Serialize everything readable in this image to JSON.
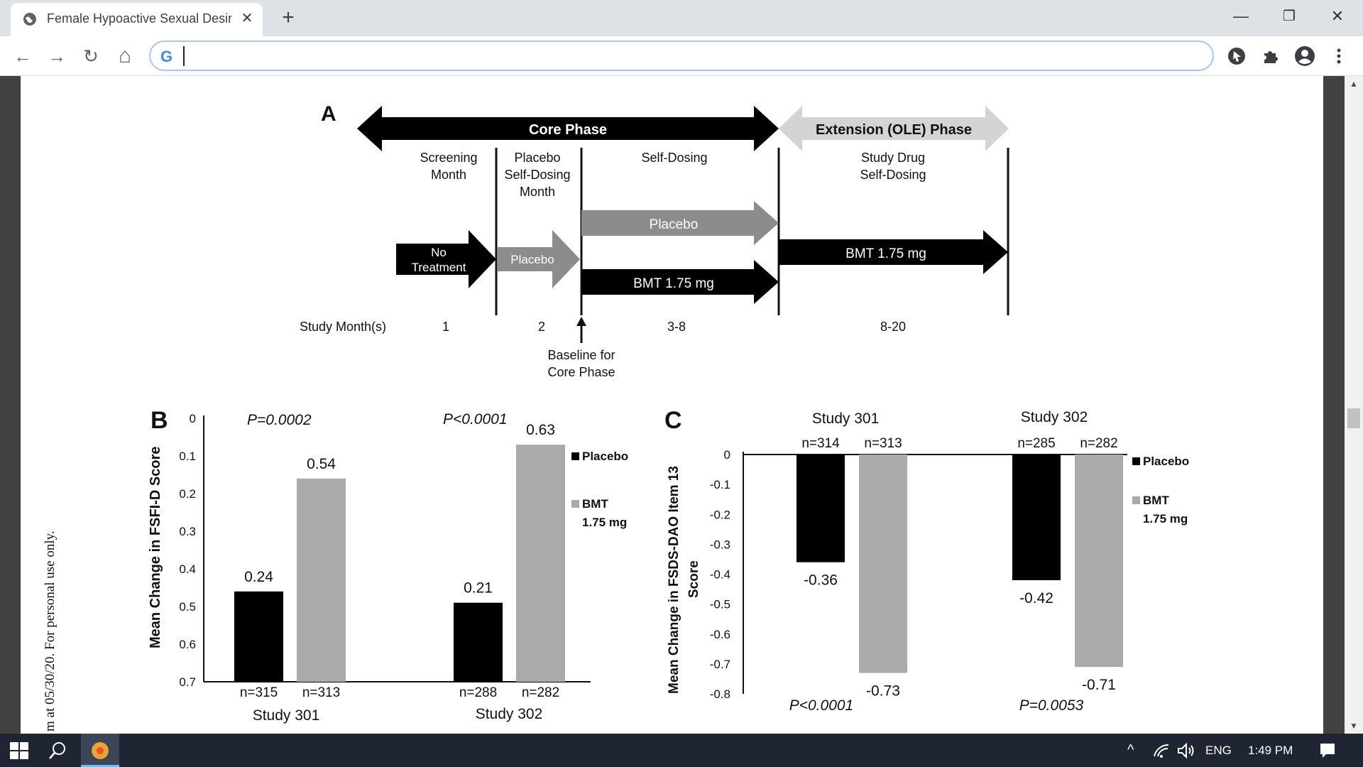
{
  "browser": {
    "tab_title": "Female Hypoactive Sexual Desire",
    "tab_close": "✕",
    "new_tab": "+",
    "minimize": "—",
    "restore": "❐",
    "close": "✕",
    "back": "←",
    "forward": "→",
    "reload": "↻",
    "home": "⌂",
    "address_value": "",
    "google_glyph": "G",
    "icons": [
      "globe-icon",
      "back-arrow-icon",
      "forward-arrow-icon",
      "reload-icon",
      "home-icon",
      "google-icon",
      "cursor-extension-icon",
      "puzzle-extensions-icon",
      "profile-icon",
      "kebab-menu-icon"
    ]
  },
  "page": {
    "side_note": "m at 05/30/20. For personal use only."
  },
  "panel_a": {
    "label": "A",
    "core_phase": "Core Phase",
    "extension_phase": "Extension (OLE) Phase",
    "col_screening": [
      "Screening",
      "Month"
    ],
    "col_placebo_month": [
      "Placebo",
      "Self-Dosing",
      "Month"
    ],
    "col_self_dosing": "Self-Dosing",
    "col_study_drug": [
      "Study Drug",
      "Self-Dosing"
    ],
    "arrow_no_treatment": [
      "No",
      "Treatment"
    ],
    "arrow_placebo_1": "Placebo",
    "arrow_placebo_2": "Placebo",
    "arrow_bmt_core": "BMT 1.75 mg",
    "arrow_bmt_ext": "BMT 1.75 mg",
    "study_months_label": "Study Month(s)",
    "months": [
      "1",
      "2",
      "3-8",
      "8-20"
    ],
    "baseline": [
      "Baseline for",
      "Core Phase"
    ]
  },
  "chart_data": [
    {
      "type": "bar",
      "panel": "B",
      "ylabel": "Mean Change in FSFI-D Score",
      "ylim": [
        0,
        0.7
      ],
      "yticks": [
        "0",
        "0.1",
        "0.2",
        "0.3",
        "0.4",
        "0.5",
        "0.6",
        "0.7"
      ],
      "categories": [
        "Study 301",
        "Study 302"
      ],
      "series": [
        {
          "name": "Placebo",
          "color": "#000000",
          "values": [
            0.24,
            0.21
          ],
          "labels": [
            "0.24",
            "0.21"
          ],
          "n": [
            "n=315",
            "n=288"
          ]
        },
        {
          "name": "BMT 1.75 mg",
          "color": "#aaaaaa",
          "values": [
            0.54,
            0.63
          ],
          "labels": [
            "0.54",
            "0.63"
          ],
          "n": [
            "n=313",
            "n=282"
          ]
        }
      ],
      "pvalues": [
        "P=0.0002",
        "P<0.0001"
      ],
      "legend": [
        "Placebo",
        "BMT",
        "1.75 mg"
      ],
      "legend_position": "right"
    },
    {
      "type": "bar",
      "panel": "C",
      "ylabel": [
        "Mean Change in FSDS-DAO Item 13",
        "Score"
      ],
      "ylim": [
        -0.8,
        0
      ],
      "yticks": [
        "0",
        "-0.1",
        "-0.2",
        "-0.3",
        "-0.4",
        "-0.5",
        "-0.6",
        "-0.7",
        "-0.8"
      ],
      "categories": [
        "Study 301",
        "Study 302"
      ],
      "series": [
        {
          "name": "Placebo",
          "color": "#000000",
          "values": [
            -0.36,
            -0.42
          ],
          "labels": [
            "-0.36",
            "-0.42"
          ],
          "n": [
            "n=314",
            "n=285"
          ]
        },
        {
          "name": "BMT 1.75 mg",
          "color": "#aaaaaa",
          "values": [
            -0.73,
            -0.71
          ],
          "labels": [
            "-0.73",
            "-0.71"
          ],
          "n": [
            "n=313",
            "n=282"
          ]
        }
      ],
      "pvalues": [
        "P<0.0001",
        "P=0.0053"
      ],
      "legend": [
        "Placebo",
        "BMT",
        "1.75 mg"
      ],
      "legend_position": "right"
    }
  ],
  "taskbar": {
    "lang": "ENG",
    "time": "1:49 PM",
    "icons": [
      "windows-start-icon",
      "search-icon",
      "chrome-app-icon",
      "chevron-up-icon",
      "wifi-icon",
      "volume-icon",
      "notification-icon"
    ]
  }
}
